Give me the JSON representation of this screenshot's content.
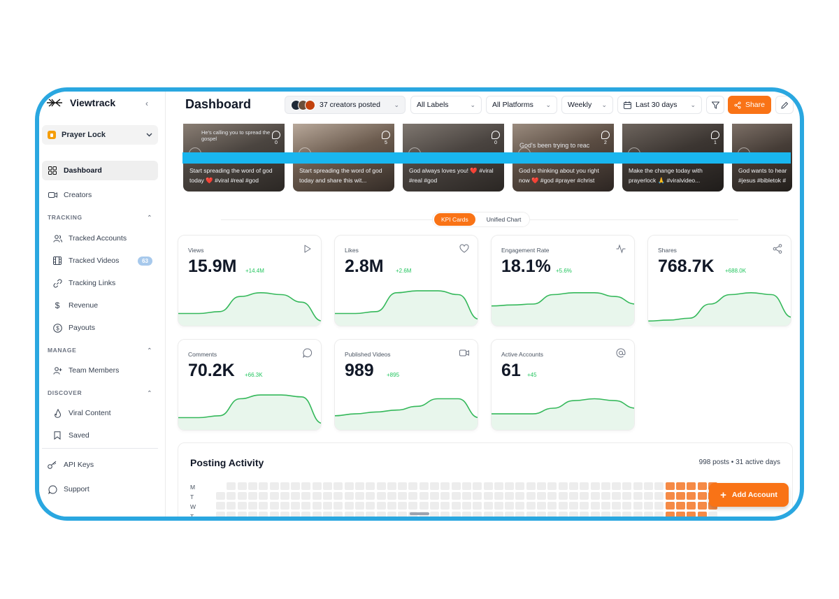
{
  "app": {
    "name": "Viewtrack"
  },
  "workspace": {
    "name": "Prayer Lock"
  },
  "sidebar": {
    "items": [
      {
        "label": "Dashboard"
      },
      {
        "label": "Creators"
      }
    ],
    "tracking": {
      "title": "TRACKING",
      "items": [
        {
          "label": "Tracked Accounts"
        },
        {
          "label": "Tracked Videos",
          "count": "63"
        },
        {
          "label": "Tracking Links"
        },
        {
          "label": "Revenue"
        },
        {
          "label": "Payouts"
        }
      ]
    },
    "manage": {
      "title": "MANAGE",
      "items": [
        {
          "label": "Team Members"
        }
      ]
    },
    "discover": {
      "title": "DISCOVER",
      "items": [
        {
          "label": "Viral Content"
        },
        {
          "label": "Saved"
        }
      ]
    },
    "footer": [
      {
        "label": "API Keys"
      },
      {
        "label": "Support"
      }
    ]
  },
  "header": {
    "title": "Dashboard",
    "creators_label": "37 creators posted",
    "labels_filter": "All Labels",
    "platforms_filter": "All Platforms",
    "interval": "Weekly",
    "date_range": "Last 30 days",
    "share_label": "Share"
  },
  "videos": [
    {
      "caption": "Start spreading the word of god today ❤️ #viral #real #god",
      "overlay": "He's calling you to spread the gospel",
      "comments": "0"
    },
    {
      "caption": "Start spreading the word of god today and share this wit...",
      "overlay": "",
      "comments": "5"
    },
    {
      "caption": "God always loves you! ❤️ #viral #real #god",
      "overlay": "",
      "comments": "0"
    },
    {
      "caption": "God is thinking about you right now ❤️ #god #prayer #christ",
      "overlay": "God's been trying to reac",
      "comments": "2"
    },
    {
      "caption": "Make the change today with prayerlock 🙏 #viralvideo...",
      "overlay": "",
      "comments": "1"
    },
    {
      "caption": "God wants to hear #jesus #bibletok #",
      "overlay": "",
      "comments": ""
    }
  ],
  "view_toggle": {
    "kpi": "KPI Cards",
    "unified": "Unified Chart"
  },
  "kpis": [
    {
      "label": "Views",
      "value": "15.9M",
      "delta": "+14.4M",
      "icon": "play-icon",
      "trend": [
        10,
        10,
        12,
        28,
        32,
        30,
        22,
        2
      ]
    },
    {
      "label": "Likes",
      "value": "2.8M",
      "delta": "+2.6M",
      "icon": "heart-icon",
      "trend": [
        10,
        10,
        12,
        32,
        34,
        34,
        30,
        4
      ]
    },
    {
      "label": "Engagement Rate",
      "value": "18.1%",
      "delta": "+5.6%",
      "icon": "activity-icon",
      "trend": [
        18,
        19,
        20,
        30,
        32,
        32,
        28,
        20
      ]
    },
    {
      "label": "Shares",
      "value": "768.7K",
      "delta": "+688.0K",
      "icon": "share-icon",
      "trend": [
        2,
        3,
        5,
        20,
        30,
        32,
        30,
        6
      ]
    },
    {
      "label": "Comments",
      "value": "70.2K",
      "delta": "+66.3K",
      "icon": "comment-icon",
      "trend": [
        10,
        10,
        12,
        30,
        34,
        34,
        32,
        4
      ]
    },
    {
      "label": "Published Videos",
      "value": "989",
      "delta": "+895",
      "icon": "video-icon",
      "trend": [
        12,
        14,
        16,
        18,
        22,
        30,
        30,
        10
      ]
    },
    {
      "label": "Active Accounts",
      "value": "61",
      "delta": "+45",
      "icon": "at-icon",
      "trend": [
        14,
        14,
        14,
        20,
        28,
        30,
        28,
        20
      ]
    }
  ],
  "activity": {
    "title": "Posting Activity",
    "summary": "998 posts • 31 active days",
    "days": [
      "M",
      "T",
      "W",
      "T"
    ],
    "add_label": "Add Account"
  },
  "colors": {
    "accent": "#f97316",
    "positive": "#22c55e",
    "frame": "#2aa7e0",
    "line": "#34b85a"
  }
}
